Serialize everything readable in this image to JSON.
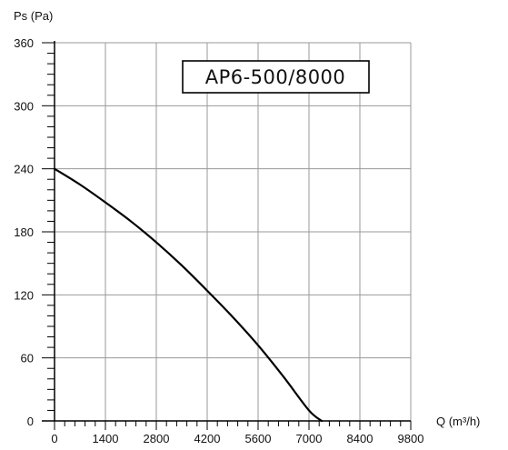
{
  "chart_data": {
    "type": "line",
    "title": "AP6-500/8000",
    "xlabel": "Q (m³/h)",
    "ylabel": "Ps (Pa)",
    "xlim": [
      0,
      9800
    ],
    "ylim": [
      0,
      360
    ],
    "x_ticks": [
      "0",
      "1400",
      "2800",
      "4200",
      "5600",
      "7000",
      "8400",
      "9800"
    ],
    "y_ticks": [
      "0",
      "60",
      "120",
      "180",
      "240",
      "300",
      "360"
    ],
    "grid": true,
    "series": [
      {
        "x": [
          0,
          700,
          1400,
          2100,
          2800,
          3500,
          4200,
          4900,
          5600,
          6300,
          7000,
          7350
        ],
        "y": [
          240,
          225,
          208,
          190,
          170,
          148,
          124,
          99,
          72,
          42,
          10,
          0
        ]
      }
    ],
    "colors": {
      "line": "#000000",
      "grid": "#9a9a9a",
      "axis": "#000000"
    }
  }
}
